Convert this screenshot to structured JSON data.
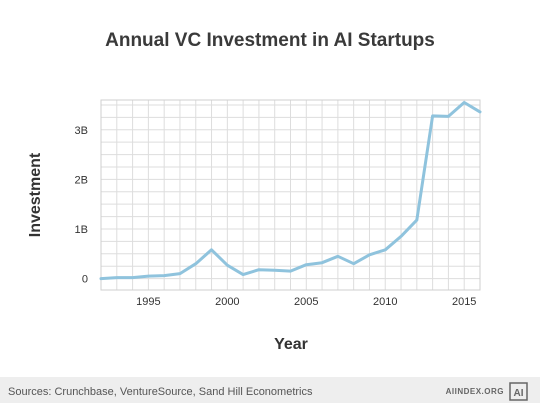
{
  "chart_data": {
    "type": "line",
    "title": "Annual VC Investment in AI Startups",
    "xlabel": "Year",
    "ylabel": "Investment",
    "xlim": [
      1992,
      2016
    ],
    "ylim": [
      -0.23,
      3.6
    ],
    "x_ticks": [
      1995,
      2000,
      2005,
      2010,
      2015
    ],
    "x_tick_labels": [
      "1995",
      "2000",
      "2005",
      "2010",
      "2015"
    ],
    "y_ticks": [
      0,
      1,
      2,
      3
    ],
    "y_tick_labels": [
      "0",
      "1B",
      "2B",
      "3B"
    ],
    "grid": true,
    "legend": false,
    "line_color": "#8fc3dd",
    "series": [
      {
        "x": [
          1992,
          1993,
          1994,
          1995,
          1996,
          1997,
          1998,
          1999,
          2000,
          2001,
          2002,
          2003,
          2004,
          2005,
          2006,
          2007,
          2008,
          2009,
          2010,
          2011,
          2012,
          2013,
          2014,
          2015,
          2016
        ],
        "values": [
          0.0,
          0.02,
          0.02,
          0.05,
          0.06,
          0.1,
          0.3,
          0.58,
          0.27,
          0.08,
          0.18,
          0.17,
          0.15,
          0.28,
          0.32,
          0.45,
          0.3,
          0.48,
          0.58,
          0.85,
          1.18,
          3.28,
          3.27,
          3.55,
          3.36
        ]
      }
    ]
  },
  "footer": {
    "sources": "Sources: Crunchbase, VentureSource, Sand Hill Econometrics",
    "brand": "AIINDEX.ORG",
    "logo_text": "AI"
  }
}
